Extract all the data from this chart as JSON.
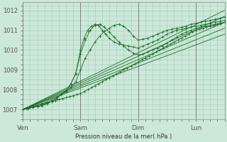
{
  "bg_color": "#cce8d8",
  "grid_color": "#a8ccb8",
  "line_color": "#1a6b2a",
  "ylabel": "Pression niveau de la mer( hPa )",
  "ylim": [
    1006.5,
    1012.4
  ],
  "yticks": [
    1007,
    1008,
    1009,
    1010,
    1011,
    1012
  ],
  "day_labels": [
    "Ven",
    "Sam",
    "Dim",
    "Lun"
  ],
  "day_positions": [
    0,
    48,
    96,
    144
  ],
  "total_hours": 168,
  "noisy_series": [
    {
      "x": [
        0,
        3,
        6,
        9,
        12,
        15,
        18,
        21,
        24,
        27,
        30,
        33,
        36,
        39,
        42,
        45,
        48,
        51,
        54,
        57,
        60,
        63,
        66,
        69,
        72,
        75,
        78,
        81,
        84,
        87,
        90,
        93,
        96,
        99,
        102,
        105,
        108,
        111,
        114,
        117,
        120,
        123,
        126,
        129,
        132,
        135,
        138,
        141,
        144,
        147,
        150,
        153,
        156,
        159,
        162,
        165,
        168
      ],
      "y": [
        1007.0,
        1007.05,
        1007.1,
        1007.15,
        1007.2,
        1007.25,
        1007.3,
        1007.35,
        1007.4,
        1007.45,
        1007.5,
        1007.55,
        1007.6,
        1007.65,
        1007.7,
        1007.75,
        1007.8,
        1007.9,
        1008.0,
        1008.1,
        1008.2,
        1008.3,
        1008.4,
        1008.5,
        1008.6,
        1008.7,
        1008.8,
        1008.9,
        1009.0,
        1009.1,
        1009.2,
        1009.3,
        1009.4,
        1009.5,
        1009.6,
        1009.7,
        1009.8,
        1009.9,
        1010.0,
        1010.1,
        1010.2,
        1010.3,
        1010.4,
        1010.5,
        1010.6,
        1010.7,
        1010.8,
        1010.9,
        1011.0,
        1011.05,
        1011.1,
        1011.15,
        1011.2,
        1011.25,
        1011.3,
        1011.35,
        1011.4
      ]
    },
    {
      "x": [
        0,
        4,
        8,
        12,
        16,
        20,
        24,
        28,
        32,
        36,
        40,
        44,
        48,
        52,
        56,
        60,
        64,
        68,
        72,
        76,
        80,
        84,
        88,
        92,
        96,
        100,
        104,
        108,
        112,
        116,
        120,
        124,
        128,
        132,
        136,
        140,
        144,
        148,
        152,
        156,
        160,
        164,
        168
      ],
      "y": [
        1007.0,
        1007.08,
        1007.15,
        1007.22,
        1007.3,
        1007.38,
        1007.48,
        1007.6,
        1007.75,
        1007.9,
        1008.1,
        1008.4,
        1009.0,
        1009.6,
        1010.0,
        1010.4,
        1010.7,
        1010.95,
        1011.1,
        1011.25,
        1011.3,
        1011.2,
        1011.0,
        1010.7,
        1010.5,
        1010.55,
        1010.6,
        1010.7,
        1010.8,
        1010.9,
        1011.0,
        1011.05,
        1011.1,
        1011.15,
        1011.2,
        1011.3,
        1011.35,
        1011.4,
        1011.45,
        1011.5,
        1011.55,
        1011.6,
        1011.65
      ]
    },
    {
      "x": [
        0,
        4,
        8,
        12,
        16,
        20,
        24,
        28,
        32,
        36,
        40,
        44,
        48,
        52,
        56,
        60,
        64,
        68,
        72,
        76,
        80,
        84,
        88,
        92,
        96,
        100,
        104,
        108,
        112,
        116,
        120,
        124,
        128,
        132,
        136,
        140,
        144,
        148,
        152,
        156,
        160,
        164,
        168
      ],
      "y": [
        1007.0,
        1007.05,
        1007.1,
        1007.15,
        1007.2,
        1007.3,
        1007.4,
        1007.55,
        1007.75,
        1007.95,
        1008.3,
        1008.8,
        1009.8,
        1010.5,
        1011.0,
        1011.25,
        1011.3,
        1011.15,
        1010.9,
        1010.65,
        1010.4,
        1010.2,
        1010.0,
        1009.85,
        1009.75,
        1009.8,
        1009.9,
        1010.0,
        1010.1,
        1010.2,
        1010.35,
        1010.5,
        1010.65,
        1010.8,
        1010.9,
        1011.0,
        1011.1,
        1011.15,
        1011.2,
        1011.25,
        1011.3,
        1011.35,
        1011.4
      ]
    },
    {
      "x": [
        0,
        4,
        8,
        12,
        16,
        20,
        24,
        28,
        32,
        36,
        40,
        44,
        48,
        51,
        54,
        57,
        60,
        63,
        66,
        69,
        72,
        76,
        80,
        84,
        88,
        92,
        96,
        100,
        104,
        108,
        112,
        116,
        120,
        124,
        128,
        132,
        136,
        140,
        144,
        148,
        152,
        156,
        160,
        164,
        168
      ],
      "y": [
        1007.0,
        1007.05,
        1007.1,
        1007.15,
        1007.2,
        1007.3,
        1007.4,
        1007.55,
        1007.75,
        1007.95,
        1008.3,
        1008.8,
        1010.0,
        1010.6,
        1011.0,
        1011.2,
        1011.3,
        1011.25,
        1011.0,
        1010.8,
        1010.6,
        1010.4,
        1010.3,
        1010.25,
        1010.2,
        1010.15,
        1010.1,
        1010.2,
        1010.3,
        1010.4,
        1010.5,
        1010.65,
        1010.8,
        1010.9,
        1011.0,
        1011.05,
        1011.1,
        1011.15,
        1011.2,
        1011.25,
        1011.3,
        1011.35,
        1011.4,
        1011.45,
        1011.5
      ]
    }
  ],
  "straight_series": [
    {
      "x": [
        0,
        168
      ],
      "y": [
        1007.0,
        1012.0
      ]
    },
    {
      "x": [
        0,
        168
      ],
      "y": [
        1007.0,
        1011.7
      ]
    },
    {
      "x": [
        0,
        168
      ],
      "y": [
        1007.0,
        1011.4
      ]
    },
    {
      "x": [
        0,
        168
      ],
      "y": [
        1007.0,
        1011.1
      ]
    },
    {
      "x": [
        0,
        168
      ],
      "y": [
        1007.0,
        1010.8
      ]
    }
  ]
}
